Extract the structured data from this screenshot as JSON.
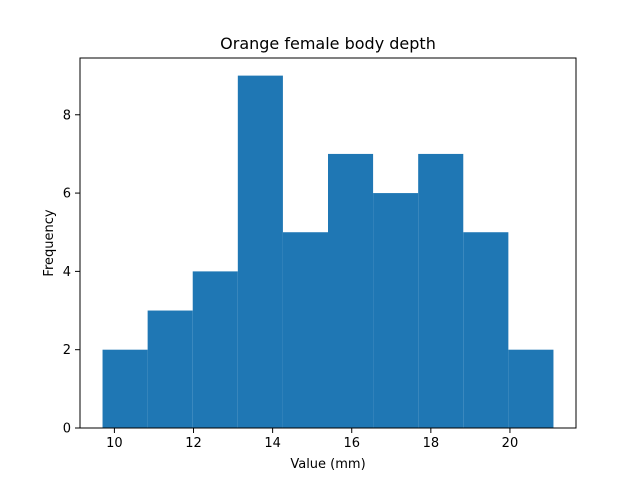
{
  "chart_data": {
    "type": "bar",
    "title": "Orange female body depth",
    "xlabel": "Value (mm)",
    "ylabel": "Frequency",
    "bin_edges": [
      9.7,
      10.84,
      11.98,
      13.12,
      14.26,
      15.4,
      16.54,
      17.68,
      18.82,
      19.96,
      21.1
    ],
    "values": [
      2,
      3,
      4,
      9,
      5,
      7,
      6,
      7,
      5,
      2
    ],
    "xlim": [
      9.13,
      21.67
    ],
    "ylim": [
      0,
      9.45
    ],
    "xticks": [
      10,
      12,
      14,
      16,
      18,
      20
    ],
    "yticks": [
      0,
      2,
      4,
      6,
      8
    ],
    "bar_color": "#1f77b4",
    "grid": false,
    "legend": "none"
  }
}
